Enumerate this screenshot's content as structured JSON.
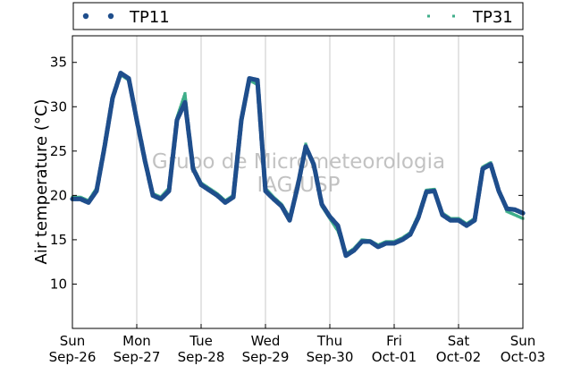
{
  "chart_data": {
    "type": "scatter",
    "title": "",
    "xlabel": "",
    "ylabel": "Air temperature (°C)",
    "ylim": [
      5,
      38
    ],
    "xlim": [
      "2016-09-26 00:00",
      "2016-10-03 00:00"
    ],
    "grid": {
      "vertical": true,
      "horizontal": false
    },
    "legend": {
      "placement": "top",
      "entries": [
        "TP11",
        "TP31"
      ]
    },
    "y_ticks": [
      10,
      15,
      20,
      25,
      30,
      35
    ],
    "x_ticks": [
      {
        "x": "2016-09-26",
        "day": "Sun",
        "date": "Sep-26"
      },
      {
        "x": "2016-09-27",
        "day": "Mon",
        "date": "Sep-27"
      },
      {
        "x": "2016-09-28",
        "day": "Tue",
        "date": "Sep-28"
      },
      {
        "x": "2016-09-29",
        "day": "Wed",
        "date": "Sep-29"
      },
      {
        "x": "2016-09-30",
        "day": "Thu",
        "date": "Sep-30"
      },
      {
        "x": "2016-10-01",
        "day": "Fri",
        "date": "Oct-01"
      },
      {
        "x": "2016-10-02",
        "day": "Sat",
        "date": "Oct-02"
      },
      {
        "x": "2016-10-03",
        "day": "Sun",
        "date": "Oct-03"
      }
    ],
    "watermark": [
      "Grupo de Micrometeorologia",
      "IAG/USP"
    ],
    "series": [
      {
        "name": "TP11",
        "color": "#1f4e8c",
        "marker": "circle",
        "x": [
          "2016-09-26 00:00",
          "2016-09-26 03:00",
          "2016-09-26 06:00",
          "2016-09-26 09:00",
          "2016-09-26 12:00",
          "2016-09-26 15:00",
          "2016-09-26 18:00",
          "2016-09-26 21:00",
          "2016-09-27 00:00",
          "2016-09-27 03:00",
          "2016-09-27 06:00",
          "2016-09-27 09:00",
          "2016-09-27 12:00",
          "2016-09-27 15:00",
          "2016-09-27 18:00",
          "2016-09-27 21:00",
          "2016-09-28 00:00",
          "2016-09-28 03:00",
          "2016-09-28 06:00",
          "2016-09-28 09:00",
          "2016-09-28 12:00",
          "2016-09-28 15:00",
          "2016-09-28 18:00",
          "2016-09-28 21:00",
          "2016-09-29 00:00",
          "2016-09-29 03:00",
          "2016-09-29 06:00",
          "2016-09-29 09:00",
          "2016-09-29 12:00",
          "2016-09-29 15:00",
          "2016-09-29 18:00",
          "2016-09-29 21:00",
          "2016-09-30 00:00",
          "2016-09-30 03:00",
          "2016-09-30 06:00",
          "2016-09-30 09:00",
          "2016-09-30 12:00",
          "2016-09-30 15:00",
          "2016-09-30 18:00",
          "2016-09-30 21:00",
          "2016-10-01 00:00",
          "2016-10-01 03:00",
          "2016-10-01 06:00",
          "2016-10-01 09:00",
          "2016-10-01 12:00",
          "2016-10-01 15:00",
          "2016-10-01 18:00",
          "2016-10-01 21:00",
          "2016-10-02 00:00",
          "2016-10-02 03:00",
          "2016-10-02 06:00",
          "2016-10-02 09:00",
          "2016-10-02 12:00",
          "2016-10-02 15:00",
          "2016-10-02 18:00",
          "2016-10-02 21:00",
          "2016-10-03 00:00"
        ],
        "values": [
          19.6,
          19.6,
          19.2,
          20.5,
          25.5,
          31.0,
          33.8,
          33.2,
          28.5,
          24.0,
          20.0,
          19.6,
          20.5,
          28.5,
          30.5,
          23.0,
          21.2,
          20.6,
          20.0,
          19.2,
          19.8,
          28.5,
          33.2,
          33.0,
          20.5,
          19.6,
          18.8,
          17.2,
          21.0,
          25.5,
          23.5,
          19.0,
          17.6,
          16.6,
          13.2,
          13.8,
          14.8,
          14.8,
          14.2,
          14.6,
          14.6,
          15.0,
          15.6,
          17.5,
          20.4,
          20.5,
          17.8,
          17.2,
          17.2,
          16.6,
          17.2,
          23.0,
          23.5,
          20.5,
          18.5,
          18.4,
          18.0
        ]
      },
      {
        "name": "TP31",
        "color": "#3fae8a",
        "marker": "square",
        "x": [
          "2016-09-26 00:00",
          "2016-09-26 03:00",
          "2016-09-26 06:00",
          "2016-09-26 09:00",
          "2016-09-26 12:00",
          "2016-09-26 15:00",
          "2016-09-26 18:00",
          "2016-09-26 21:00",
          "2016-09-27 00:00",
          "2016-09-27 03:00",
          "2016-09-27 06:00",
          "2016-09-27 09:00",
          "2016-09-27 12:00",
          "2016-09-27 15:00",
          "2016-09-27 18:00",
          "2016-09-27 21:00",
          "2016-09-28 00:00",
          "2016-09-28 03:00",
          "2016-09-28 06:00",
          "2016-09-28 09:00",
          "2016-09-28 12:00",
          "2016-09-28 15:00",
          "2016-09-28 18:00",
          "2016-09-28 21:00",
          "2016-09-29 00:00",
          "2016-09-29 03:00",
          "2016-09-29 06:00",
          "2016-09-29 09:00",
          "2016-09-29 12:00",
          "2016-09-29 15:00",
          "2016-09-29 18:00",
          "2016-09-29 21:00",
          "2016-09-30 00:00",
          "2016-09-30 03:00",
          "2016-09-30 06:00",
          "2016-09-30 09:00",
          "2016-09-30 12:00",
          "2016-09-30 15:00",
          "2016-09-30 18:00",
          "2016-09-30 21:00",
          "2016-10-01 00:00",
          "2016-10-01 03:00",
          "2016-10-01 06:00",
          "2016-10-01 09:00",
          "2016-10-01 12:00",
          "2016-10-01 15:00",
          "2016-10-01 18:00",
          "2016-10-01 21:00",
          "2016-10-02 00:00",
          "2016-10-02 03:00",
          "2016-10-02 06:00",
          "2016-10-02 09:00",
          "2016-10-02 12:00",
          "2016-10-02 15:00",
          "2016-10-02 18:00",
          "2016-10-02 21:00",
          "2016-10-03 00:00"
        ],
        "values": [
          19.8,
          19.8,
          19.4,
          20.8,
          25.8,
          31.2,
          33.6,
          33.0,
          28.2,
          23.6,
          20.2,
          19.8,
          20.8,
          28.8,
          31.5,
          23.2,
          21.4,
          20.8,
          20.2,
          19.4,
          20.0,
          28.8,
          33.0,
          32.5,
          20.8,
          19.8,
          19.0,
          17.5,
          21.2,
          25.8,
          23.2,
          18.8,
          17.4,
          16.0,
          13.4,
          14.0,
          15.0,
          14.9,
          14.4,
          14.8,
          14.8,
          15.2,
          15.8,
          17.8,
          20.6,
          20.7,
          18.0,
          17.4,
          17.4,
          16.8,
          17.4,
          23.2,
          23.7,
          20.7,
          18.2,
          17.8,
          17.4
        ]
      }
    ]
  }
}
